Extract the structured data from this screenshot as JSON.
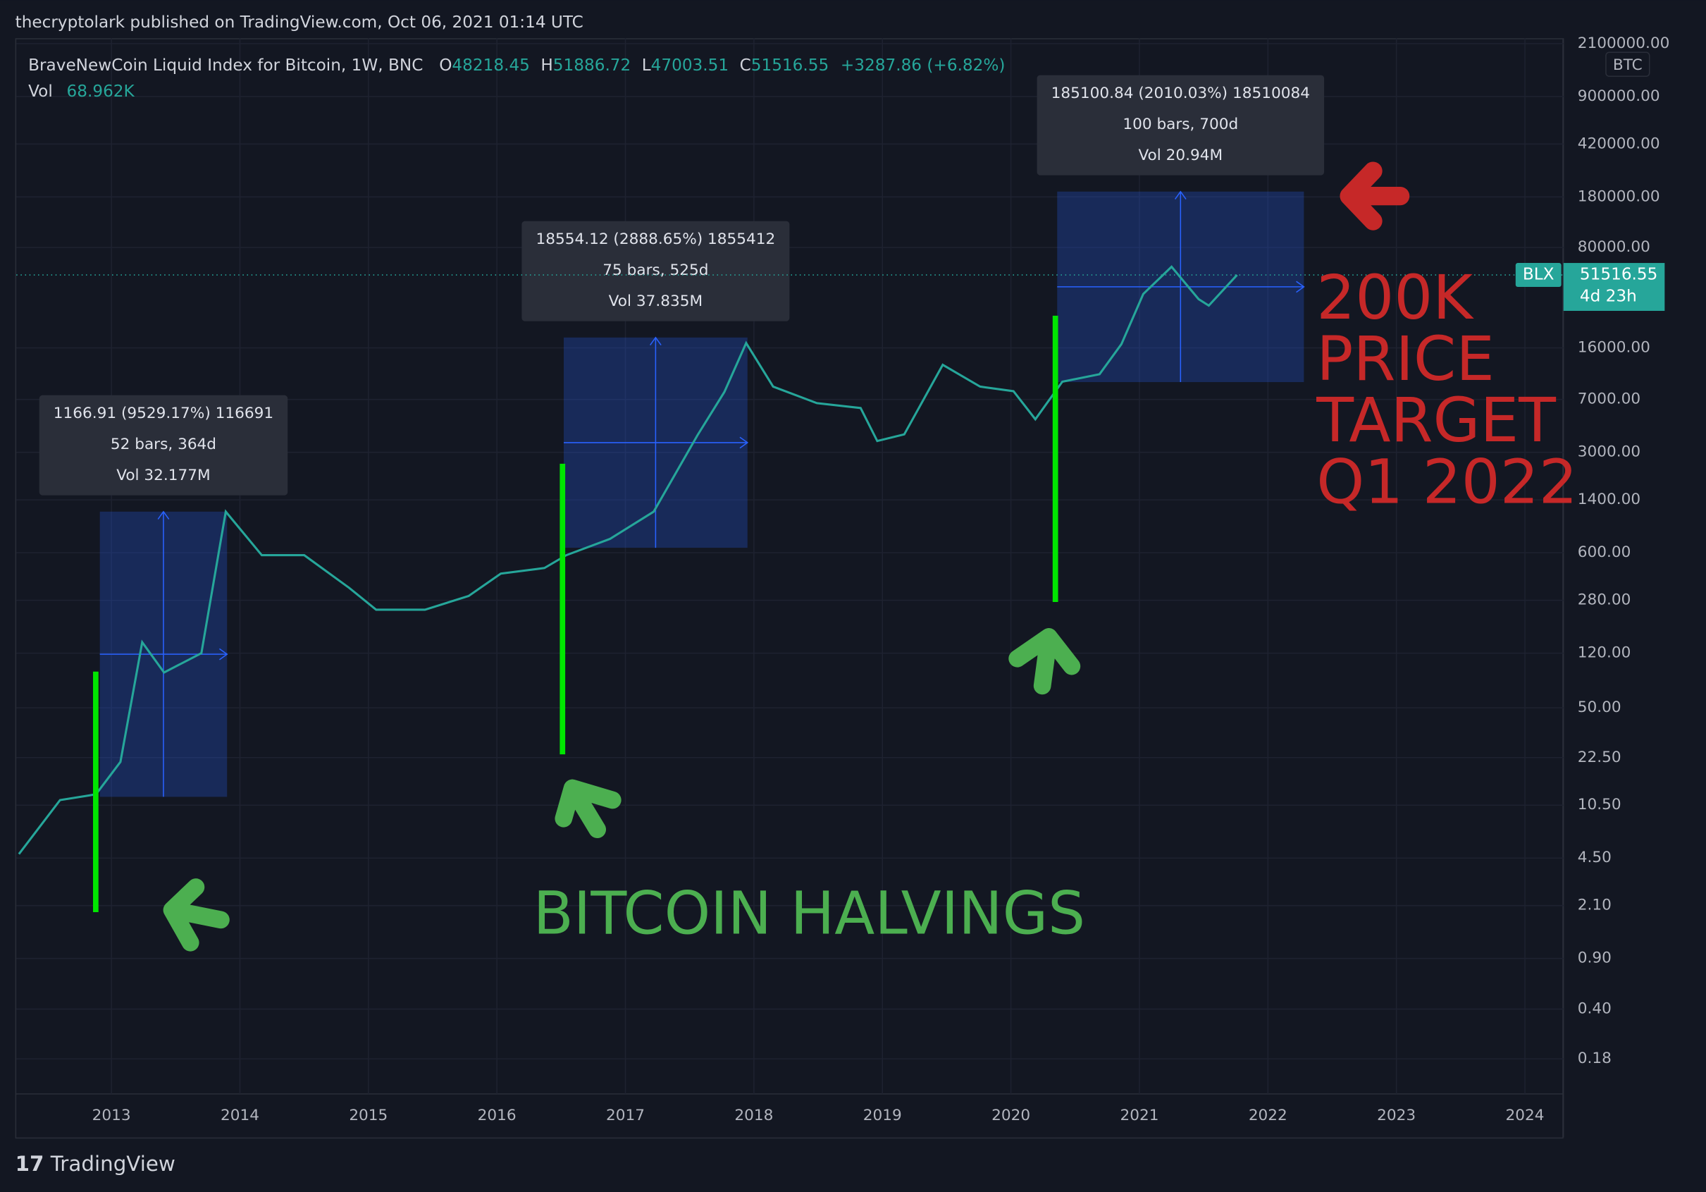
{
  "header": "thecryptolark published on TradingView.com, Oct 06, 2021 01:14 UTC",
  "footer": "TradingView",
  "chart_data": {
    "type": "line",
    "legend_title": "BraveNewCoin Liquid Index for Bitcoin, 1W, BNC",
    "ohlc": [
      {
        "key": "O",
        "value": 48218.45
      },
      {
        "key": "H",
        "value": 51886.72
      },
      {
        "key": "L",
        "value": 47003.51
      },
      {
        "key": "C",
        "value": 51516.55
      }
    ],
    "change": "+3287.86 (+6.82%)",
    "vol_label": "Vol",
    "vol": "68.962K",
    "currency": "BTC",
    "symbol": "BLX",
    "last_price": 51516.55,
    "countdown": "4d 23h",
    "log_scale": true,
    "grid": true,
    "x": [
      2012.28,
      2012.6,
      2012.88,
      2013.07,
      2013.24,
      2013.41,
      2013.7,
      2013.89,
      2014.17,
      2014.5,
      2014.85,
      2015.06,
      2015.44,
      2015.78,
      2016.03,
      2016.37,
      2016.54,
      2016.88,
      2017.22,
      2017.56,
      2017.77,
      2017.94,
      2018.15,
      2018.49,
      2018.83,
      2018.96,
      2019.17,
      2019.47,
      2019.76,
      2020.02,
      2020.19,
      2020.4,
      2020.69,
      2020.86,
      2021.03,
      2021.25,
      2021.46,
      2021.54,
      2021.76
    ],
    "series": [
      {
        "name": "BLX",
        "color": "#26a69a",
        "values": [
          4.8,
          11.4,
          12.5,
          21,
          143,
          88,
          120,
          1160,
          577,
          577,
          342,
          241,
          241,
          300,
          430,
          470,
          577,
          750,
          1160,
          3940,
          7900,
          17300,
          8600,
          6600,
          6100,
          3600,
          4000,
          12200,
          8600,
          8000,
          5100,
          9300,
          10500,
          17000,
          38000,
          58700,
          35000,
          31500,
          51516.55
        ]
      }
    ],
    "xlim": [
      2012.26,
      2024.3
    ],
    "xticks": [
      2013,
      2014,
      2015,
      2016,
      2017,
      2018,
      2019,
      2020,
      2021,
      2022,
      2023,
      2024
    ],
    "ylim": [
      0.1026,
      2290000
    ],
    "yticks": [
      {
        "value": 2100000,
        "label": "2100000.00"
      },
      {
        "value": 900000,
        "label": "900000.00"
      },
      {
        "value": 420000,
        "label": "420000.00"
      },
      {
        "value": 180000,
        "label": "180000.00"
      },
      {
        "value": 80000,
        "label": "80000.00"
      },
      {
        "value": 16000,
        "label": "16000.00"
      },
      {
        "value": 7000,
        "label": "7000.00"
      },
      {
        "value": 3000,
        "label": "3000.00"
      },
      {
        "value": 1400,
        "label": "1400.00"
      },
      {
        "value": 600,
        "label": "600.00"
      },
      {
        "value": 280,
        "label": "280.00"
      },
      {
        "value": 120,
        "label": "120.00"
      },
      {
        "value": 50,
        "label": "50.00"
      },
      {
        "value": 22.5,
        "label": "22.50"
      },
      {
        "value": 10.5,
        "label": "10.50"
      },
      {
        "value": 4.5,
        "label": "4.50"
      },
      {
        "value": 2.1,
        "label": "2.10"
      },
      {
        "value": 0.9,
        "label": "0.90"
      },
      {
        "value": 0.4,
        "label": "0.40"
      },
      {
        "value": 0.18,
        "label": "0.18"
      }
    ],
    "measures": [
      {
        "x0": 2012.91,
        "x1": 2013.9,
        "p0": 12,
        "p1": 1160,
        "lines": [
          "1166.91 (9529.17%) 116691",
          "52 bars, 364d",
          "Vol 32.177M"
        ]
      },
      {
        "x0": 2016.52,
        "x1": 2017.95,
        "p0": 650,
        "p1": 18900,
        "lines": [
          "18554.12 (2888.65%) 1855412",
          "75 bars, 525d",
          "Vol 37.835M"
        ]
      },
      {
        "x0": 2020.36,
        "x1": 2022.28,
        "p0": 9250,
        "p1": 196000,
        "lines": [
          "185100.84 (2010.03%) 18510084",
          "100 bars, 700d",
          "Vol 20.94M"
        ]
      }
    ],
    "annotations": {
      "halvings": "BITCOIN HALVINGS",
      "target": [
        "200K",
        "PRICE",
        "TARGET",
        "Q1 2022"
      ]
    }
  }
}
